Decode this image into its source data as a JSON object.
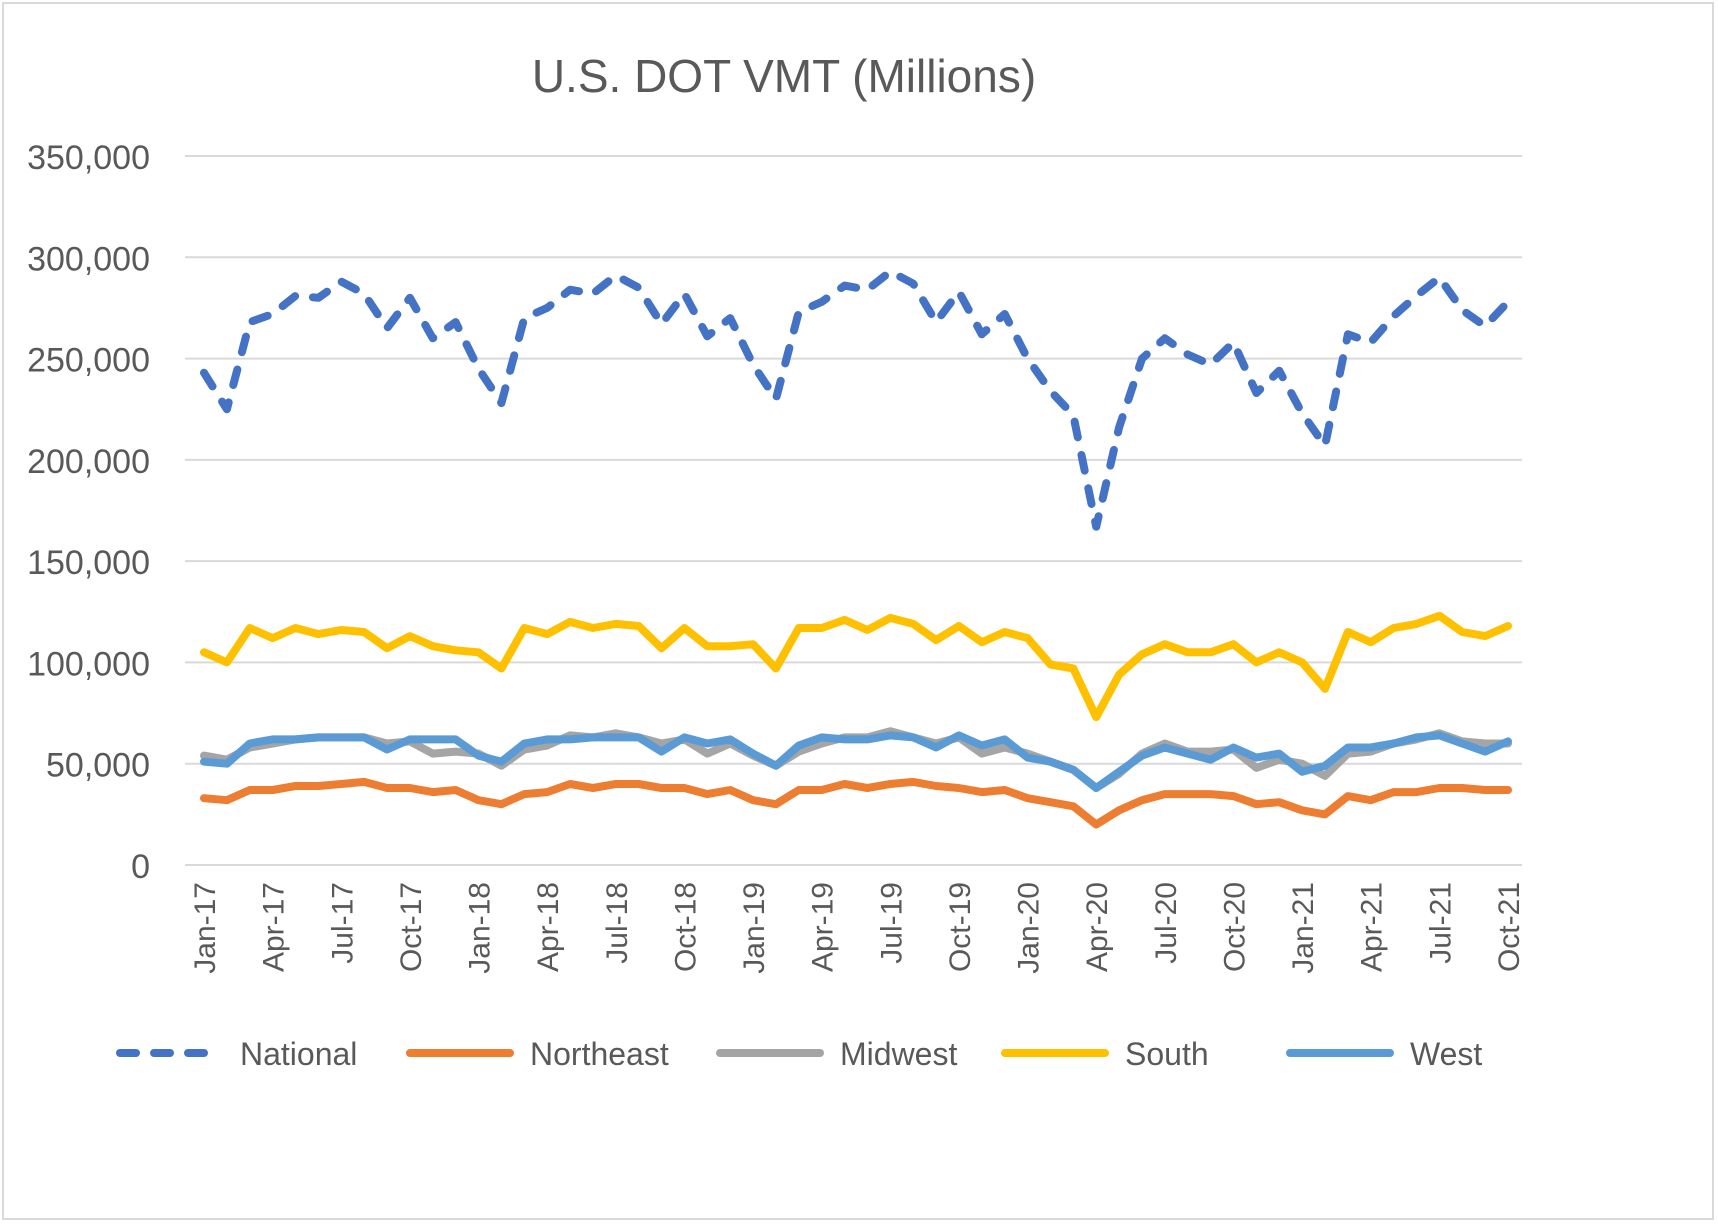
{
  "chart_data": {
    "type": "line",
    "title": "U.S. DOT VMT (Millions)",
    "xlabel": "",
    "ylabel": "",
    "ylim": [
      0,
      350000
    ],
    "yticks": [
      0,
      50000,
      100000,
      150000,
      200000,
      250000,
      300000,
      350000
    ],
    "ytick_labels": [
      "0",
      "50,000",
      "100,000",
      "150,000",
      "200,000",
      "250,000",
      "300,000",
      "350,000"
    ],
    "x": [
      "Jan-17",
      "Feb-17",
      "Mar-17",
      "Apr-17",
      "May-17",
      "Jun-17",
      "Jul-17",
      "Aug-17",
      "Sep-17",
      "Oct-17",
      "Nov-17",
      "Dec-17",
      "Jan-18",
      "Feb-18",
      "Mar-18",
      "Apr-18",
      "May-18",
      "Jun-18",
      "Jul-18",
      "Aug-18",
      "Sep-18",
      "Oct-18",
      "Nov-18",
      "Dec-18",
      "Jan-19",
      "Feb-19",
      "Mar-19",
      "Apr-19",
      "May-19",
      "Jun-19",
      "Jul-19",
      "Aug-19",
      "Sep-19",
      "Oct-19",
      "Nov-19",
      "Dec-19",
      "Jan-20",
      "Feb-20",
      "Mar-20",
      "Apr-20",
      "May-20",
      "Jun-20",
      "Jul-20",
      "Aug-20",
      "Sep-20",
      "Oct-20",
      "Nov-20",
      "Dec-20",
      "Jan-21",
      "Feb-21",
      "Mar-21",
      "Apr-21",
      "May-21",
      "Jun-21",
      "Jul-21",
      "Aug-21",
      "Sep-21",
      "Oct-21"
    ],
    "xtick_labels": [
      "Jan-17",
      "Apr-17",
      "Jul-17",
      "Oct-17",
      "Jan-18",
      "Apr-18",
      "Jul-18",
      "Oct-18",
      "Jan-19",
      "Apr-19",
      "Jul-19",
      "Oct-19",
      "Jan-20",
      "Apr-20",
      "Jul-20",
      "Oct-20",
      "Jan-21",
      "Apr-21",
      "Jul-21",
      "Oct-21"
    ],
    "grid": true,
    "legend_position": "bottom",
    "series": [
      {
        "name": "National",
        "color": "#4472C4",
        "dashed": true,
        "values": [
          243000,
          225000,
          268000,
          272000,
          281000,
          280000,
          288000,
          282000,
          265000,
          280000,
          260000,
          268000,
          245000,
          228000,
          270000,
          275000,
          284000,
          282000,
          291000,
          285000,
          267000,
          282000,
          261000,
          270000,
          247000,
          230000,
          273000,
          278000,
          286000,
          284000,
          293000,
          287000,
          268000,
          283000,
          262000,
          272000,
          250000,
          234000,
          222000,
          167000,
          216000,
          250000,
          260000,
          252000,
          247000,
          258000,
          233000,
          244000,
          223000,
          207000,
          262000,
          258000,
          271000,
          281000,
          290000,
          274000,
          266000,
          278000
        ]
      },
      {
        "name": "Northeast",
        "color": "#ED7D31",
        "dashed": false,
        "values": [
          33000,
          32000,
          37000,
          37000,
          39000,
          39000,
          40000,
          41000,
          38000,
          38000,
          36000,
          37000,
          32000,
          30000,
          35000,
          36000,
          40000,
          38000,
          40000,
          40000,
          38000,
          38000,
          35000,
          37000,
          32000,
          30000,
          37000,
          37000,
          40000,
          38000,
          40000,
          41000,
          39000,
          38000,
          36000,
          37000,
          33000,
          31000,
          29000,
          20000,
          27000,
          32000,
          35000,
          35000,
          35000,
          34000,
          30000,
          31000,
          27000,
          25000,
          34000,
          32000,
          36000,
          36000,
          38000,
          38000,
          37000,
          37000
        ]
      },
      {
        "name": "Midwest",
        "color": "#A5A5A5",
        "dashed": false,
        "values": [
          54000,
          52000,
          58000,
          60000,
          62000,
          63000,
          63000,
          63000,
          60000,
          61000,
          55000,
          56000,
          55000,
          49000,
          57000,
          59000,
          64000,
          63000,
          65000,
          63000,
          60000,
          62000,
          55000,
          60000,
          54000,
          49000,
          56000,
          60000,
          63000,
          63000,
          66000,
          63000,
          60000,
          63000,
          55000,
          58000,
          55000,
          51000,
          47000,
          38000,
          45000,
          55000,
          60000,
          56000,
          56000,
          57000,
          48000,
          52000,
          50000,
          44000,
          55000,
          56000,
          60000,
          62000,
          65000,
          61000,
          60000,
          60000
        ]
      },
      {
        "name": "South",
        "color": "#FFC000",
        "dashed": false,
        "values": [
          105000,
          100000,
          117000,
          112000,
          117000,
          114000,
          116000,
          115000,
          107000,
          113000,
          108000,
          106000,
          105000,
          97000,
          117000,
          114000,
          120000,
          117000,
          119000,
          118000,
          107000,
          117000,
          108000,
          108000,
          109000,
          97000,
          117000,
          117000,
          121000,
          116000,
          122000,
          119000,
          111000,
          118000,
          110000,
          115000,
          112000,
          99000,
          97000,
          73000,
          94000,
          104000,
          109000,
          105000,
          105000,
          109000,
          100000,
          105000,
          100000,
          87000,
          115000,
          110000,
          117000,
          119000,
          123000,
          115000,
          113000,
          118000
        ]
      },
      {
        "name": "West",
        "color": "#5B9BD5",
        "dashed": false,
        "values": [
          51000,
          50000,
          60000,
          62000,
          62000,
          63000,
          63000,
          63000,
          57000,
          62000,
          62000,
          62000,
          54000,
          51000,
          60000,
          62000,
          62000,
          63000,
          63000,
          63000,
          56000,
          63000,
          60000,
          62000,
          55000,
          49000,
          59000,
          63000,
          62000,
          62000,
          64000,
          63000,
          58000,
          64000,
          59000,
          62000,
          53000,
          51000,
          47000,
          38000,
          46000,
          54000,
          58000,
          55000,
          52000,
          58000,
          53000,
          55000,
          46000,
          49000,
          58000,
          58000,
          60000,
          63000,
          64000,
          60000,
          56000,
          61000
        ]
      }
    ]
  }
}
